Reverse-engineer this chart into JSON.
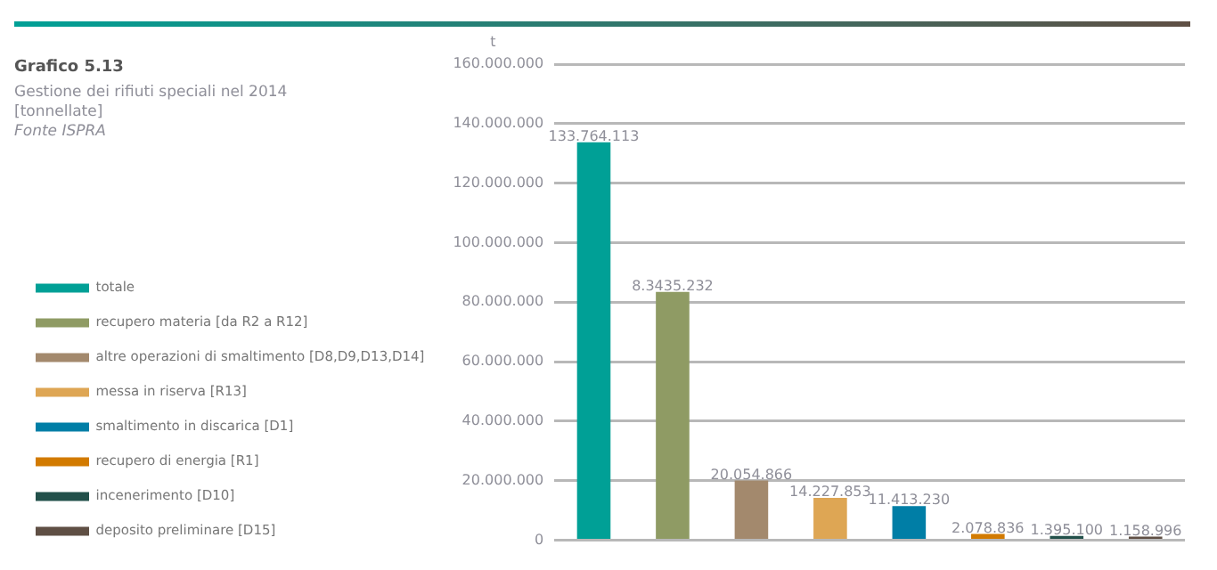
{
  "chart_data": {
    "type": "bar",
    "title": "Grafico 5.13",
    "subtitle": "Gestione dei rifiuti speciali nel 2014\n[tonnellate]",
    "annotations": [
      "Fonte ISPRA"
    ],
    "ylabel": "t",
    "categories": [
      null,
      null,
      null,
      null,
      null,
      null,
      null,
      null
    ],
    "series": [
      {
        "name": "totale",
        "color": "#00a096",
        "values": [
          133764113,
          null,
          null,
          null,
          null,
          null,
          null,
          null
        ],
        "value_labels": [
          "133.764.113",
          null,
          null,
          null,
          null,
          null,
          null,
          null
        ]
      },
      {
        "name": "recupero materia [da R2 a R12]",
        "color": "#8f9b64",
        "values": [
          null,
          83435232,
          null,
          null,
          null,
          null,
          null,
          null
        ],
        "value_labels": [
          null,
          "8.3435.232",
          null,
          null,
          null,
          null,
          null,
          null
        ]
      },
      {
        "name": "altre operazioni di smaltimento [D8,D9,D13,D14]",
        "color": "#a3896d",
        "values": [
          null,
          null,
          20054866,
          null,
          null,
          null,
          null,
          null
        ],
        "value_labels": [
          null,
          null,
          "20.054.866",
          null,
          null,
          null,
          null,
          null
        ]
      },
      {
        "name": "messa in riserva [R13]",
        "color": "#dea654",
        "values": [
          null,
          null,
          null,
          14227853,
          null,
          null,
          null,
          null
        ],
        "value_labels": [
          null,
          null,
          null,
          "14.227.853",
          null,
          null,
          null,
          null
        ]
      },
      {
        "name": "smaltimento in discarica [D1]",
        "color": "#007ea6",
        "values": [
          null,
          null,
          null,
          null,
          11413230,
          null,
          null,
          null
        ],
        "value_labels": [
          null,
          null,
          null,
          null,
          "11.413.230",
          null,
          null,
          null
        ]
      },
      {
        "name": "recupero di energia [R1]",
        "color": "#d27a00",
        "values": [
          null,
          null,
          null,
          null,
          null,
          2078836,
          null,
          null
        ],
        "value_labels": [
          null,
          null,
          null,
          null,
          null,
          "2.078.836",
          null,
          null
        ]
      },
      {
        "name": "incenerimento [D10]",
        "color": "#22504a",
        "values": [
          null,
          null,
          null,
          null,
          null,
          null,
          1395100,
          null
        ],
        "value_labels": [
          null,
          null,
          null,
          null,
          null,
          null,
          "1.395.100",
          null
        ]
      },
      {
        "name": "deposito preliminare [D15]",
        "color": "#5f4f44",
        "values": [
          null,
          null,
          null,
          null,
          null,
          null,
          null,
          1158996
        ],
        "value_labels": [
          null,
          null,
          null,
          null,
          null,
          null,
          null,
          "1.158.996"
        ]
      }
    ],
    "ylim": [
      0,
      160000000
    ],
    "yticks": [
      0,
      {
        "value": 20000000,
        "label": "20.000.000"
      },
      {
        "value": 40000000,
        "label": "40.000.000"
      },
      {
        "value": 60000000,
        "label": "60.000.000"
      },
      {
        "value": 80000000,
        "label": "80.000.000"
      },
      {
        "value": 100000000,
        "label": "100.000.000"
      },
      {
        "value": 120000000,
        "label": "120.000.000"
      },
      {
        "value": 140000000,
        "label": "140.000.000"
      },
      {
        "value": 160000000,
        "label": "160.000.000"
      }
    ],
    "grid": "y",
    "legend": "left",
    "tick_labels": "y"
  }
}
